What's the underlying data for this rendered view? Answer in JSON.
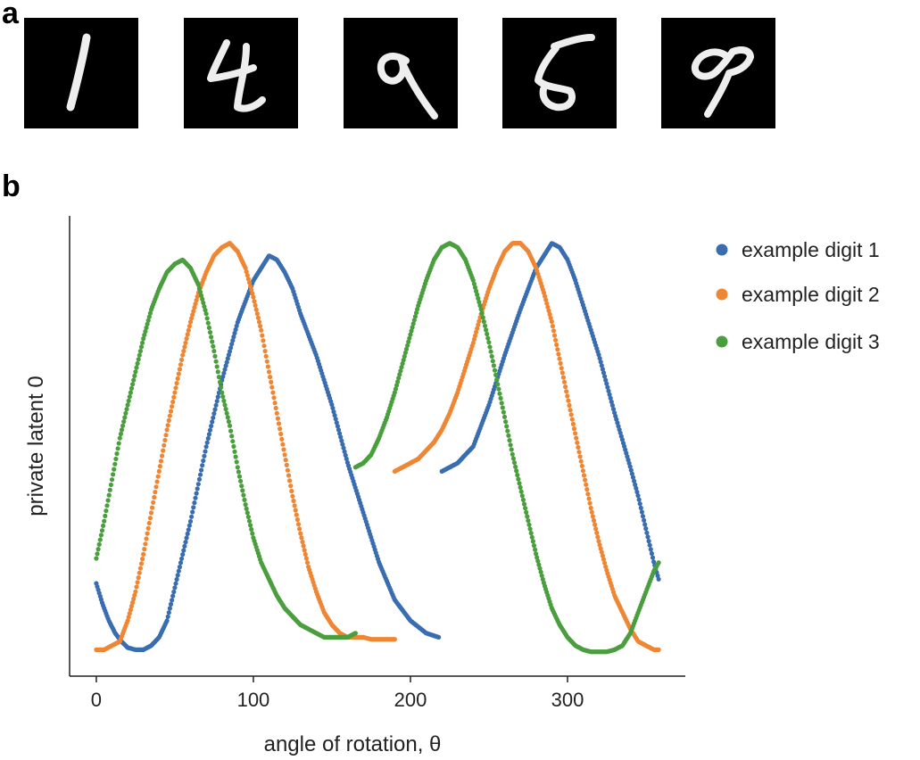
{
  "panel_a": {
    "label": "a",
    "digits": [
      {
        "name": "mnist-digit-1",
        "value": "1"
      },
      {
        "name": "mnist-digit-4",
        "value": "4"
      },
      {
        "name": "mnist-digit-9-rotated",
        "value": "9"
      },
      {
        "name": "mnist-digit-5",
        "value": "5"
      },
      {
        "name": "mnist-digit-9",
        "value": "9"
      }
    ]
  },
  "panel_b": {
    "label": "b"
  },
  "colors": {
    "blue": "#3a6db0",
    "orange": "#ee8633",
    "green": "#4a9e3e"
  },
  "chart_data": {
    "type": "scatter",
    "xlabel": "angle of rotation, θ",
    "ylabel": "private latent 0",
    "xlim": [
      -17,
      375
    ],
    "ylim": [
      0,
      1
    ],
    "xticks": [
      0,
      100,
      200,
      300
    ],
    "grid": false,
    "legend_position": "right",
    "series": [
      {
        "name": "example digit 1",
        "color": "#3a6db0",
        "segments": [
          {
            "x": [
              0,
              4,
              8,
              12,
              16,
              20,
              25,
              30,
              35,
              40,
              45,
              50,
              60,
              70,
              80,
              90,
              100,
              110,
              115,
              120,
              125,
              130,
              140,
              150,
              160,
              170,
              180,
              190,
              200,
              210,
              218
            ],
            "y": [
              0.17,
              0.12,
              0.08,
              0.05,
              0.03,
              0.015,
              0.01,
              0.01,
              0.02,
              0.04,
              0.08,
              0.16,
              0.32,
              0.5,
              0.66,
              0.8,
              0.9,
              0.96,
              0.95,
              0.92,
              0.88,
              0.82,
              0.72,
              0.6,
              0.46,
              0.34,
              0.22,
              0.13,
              0.08,
              0.05,
              0.04
            ]
          },
          {
            "x": [
              220,
              225,
              230,
              240,
              250,
              260,
              270,
              280,
              290,
              295,
              300,
              305,
              310,
              320,
              330,
              340,
              345,
              350,
              355,
              358
            ],
            "y": [
              0.44,
              0.45,
              0.46,
              0.5,
              0.6,
              0.72,
              0.83,
              0.93,
              0.99,
              0.98,
              0.95,
              0.9,
              0.84,
              0.72,
              0.58,
              0.45,
              0.38,
              0.3,
              0.22,
              0.18
            ]
          }
        ]
      },
      {
        "name": "example digit 2",
        "color": "#ee8633",
        "segments": [
          {
            "x": [
              0,
              5,
              10,
              15,
              20,
              25,
              30,
              35,
              40,
              45,
              50,
              55,
              60,
              65,
              70,
              75,
              80,
              85,
              90,
              95,
              100,
              105,
              110,
              115,
              120,
              125,
              130,
              135,
              140,
              145,
              150,
              155,
              160,
              165,
              170,
              175,
              180,
              185,
              190
            ],
            "y": [
              0.01,
              0.01,
              0.02,
              0.03,
              0.08,
              0.15,
              0.24,
              0.34,
              0.44,
              0.54,
              0.63,
              0.72,
              0.8,
              0.87,
              0.92,
              0.96,
              0.98,
              0.99,
              0.97,
              0.93,
              0.86,
              0.78,
              0.68,
              0.58,
              0.48,
              0.38,
              0.29,
              0.21,
              0.15,
              0.1,
              0.07,
              0.05,
              0.04,
              0.04,
              0.04,
              0.035,
              0.035,
              0.035,
              0.035
            ]
          },
          {
            "x": [
              190,
              195,
              200,
              205,
              210,
              215,
              220,
              225,
              230,
              235,
              240,
              245,
              250,
              255,
              260,
              265,
              270,
              275,
              280,
              285,
              290,
              295,
              300,
              305,
              310,
              315,
              320,
              325,
              330,
              335,
              340,
              345,
              350,
              355,
              358
            ],
            "y": [
              0.44,
              0.45,
              0.46,
              0.47,
              0.49,
              0.51,
              0.54,
              0.58,
              0.63,
              0.69,
              0.75,
              0.82,
              0.88,
              0.93,
              0.97,
              0.99,
              0.99,
              0.97,
              0.93,
              0.87,
              0.8,
              0.71,
              0.62,
              0.53,
              0.44,
              0.35,
              0.27,
              0.2,
              0.14,
              0.1,
              0.06,
              0.03,
              0.02,
              0.01,
              0.01
            ]
          }
        ]
      },
      {
        "name": "example digit 3",
        "color": "#4a9e3e",
        "segments": [
          {
            "x": [
              0,
              5,
              10,
              15,
              20,
              25,
              30,
              35,
              40,
              45,
              50,
              55,
              60,
              65,
              70,
              75,
              80,
              85,
              90,
              95,
              100,
              105,
              110,
              115,
              120,
              125,
              130,
              135,
              140,
              145,
              150,
              155,
              160,
              165
            ],
            "y": [
              0.23,
              0.32,
              0.42,
              0.52,
              0.6,
              0.68,
              0.76,
              0.83,
              0.88,
              0.92,
              0.94,
              0.95,
              0.93,
              0.89,
              0.82,
              0.73,
              0.63,
              0.55,
              0.45,
              0.36,
              0.28,
              0.22,
              0.18,
              0.14,
              0.11,
              0.09,
              0.07,
              0.06,
              0.05,
              0.04,
              0.04,
              0.04,
              0.04,
              0.05
            ]
          },
          {
            "x": [
              165,
              170,
              175,
              180,
              185,
              190,
              195,
              200,
              205,
              210,
              215,
              220,
              225,
              230,
              235,
              240,
              245,
              250,
              255,
              260,
              265,
              270,
              275,
              280,
              285,
              290,
              295,
              300,
              305,
              310,
              315,
              320,
              325,
              330,
              335,
              340,
              345,
              350,
              355,
              358
            ],
            "y": [
              0.45,
              0.46,
              0.48,
              0.52,
              0.57,
              0.63,
              0.7,
              0.77,
              0.84,
              0.9,
              0.95,
              0.98,
              0.99,
              0.98,
              0.95,
              0.9,
              0.83,
              0.75,
              0.66,
              0.57,
              0.48,
              0.4,
              0.32,
              0.24,
              0.17,
              0.11,
              0.07,
              0.04,
              0.02,
              0.01,
              0.005,
              0.005,
              0.005,
              0.01,
              0.02,
              0.05,
              0.1,
              0.15,
              0.2,
              0.22
            ]
          }
        ]
      }
    ]
  }
}
